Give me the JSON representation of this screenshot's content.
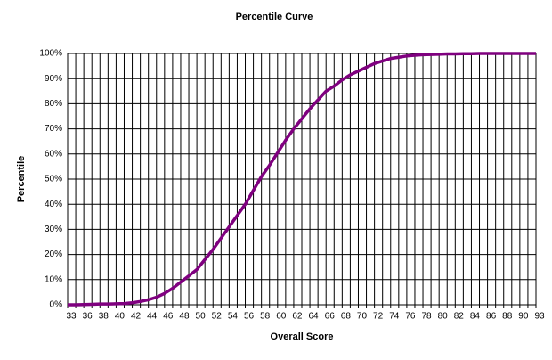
{
  "chart_data": {
    "type": "line",
    "title": "Percentile Curve",
    "x_label": "Overall Score",
    "y_label": "Percentile",
    "categories": [
      "33",
      null,
      "36",
      null,
      "38",
      null,
      "40",
      null,
      "42",
      null,
      "44",
      null,
      "46",
      null,
      "48",
      null,
      "50",
      null,
      "52",
      null,
      "54",
      null,
      "56",
      null,
      "58",
      null,
      "60",
      null,
      "62",
      null,
      "64",
      null,
      "66",
      null,
      "68",
      null,
      "70",
      null,
      "72",
      null,
      "74",
      null,
      "76",
      null,
      "78",
      null,
      "80",
      null,
      "82",
      null,
      "84",
      null,
      "86",
      null,
      "88",
      null,
      "90",
      null,
      "93"
    ],
    "values": [
      0,
      0,
      0.1,
      0.2,
      0.3,
      0.3,
      0.4,
      0.5,
      0.8,
      1.3,
      2,
      3,
      4.5,
      6.5,
      9,
      11.5,
      14,
      18,
      22,
      26.5,
      31,
      35.5,
      40,
      45.5,
      51,
      55.5,
      60.5,
      65.5,
      70,
      74,
      78,
      81.5,
      85,
      87,
      89.5,
      91.5,
      93,
      94.5,
      96,
      97,
      98,
      98.5,
      99,
      99.3,
      99.5,
      99.6,
      99.7,
      99.8,
      99.8,
      99.9,
      99.9,
      100,
      100,
      100,
      100,
      100,
      100,
      100,
      100
    ],
    "color": "#7f007f",
    "ylim": [
      0,
      100
    ],
    "yticks": [
      {
        "value": 0,
        "label": "0%"
      },
      {
        "value": 10,
        "label": "10%"
      },
      {
        "value": 20,
        "label": "20%"
      },
      {
        "value": 30,
        "label": "30%"
      },
      {
        "value": 40,
        "label": "40%"
      },
      {
        "value": 50,
        "label": "50%"
      },
      {
        "value": 60,
        "label": "60%"
      },
      {
        "value": 70,
        "label": "70%"
      },
      {
        "value": 80,
        "label": "80%"
      },
      {
        "value": 90,
        "label": "90%"
      },
      {
        "value": 100,
        "label": "100%"
      }
    ],
    "grid": true
  }
}
